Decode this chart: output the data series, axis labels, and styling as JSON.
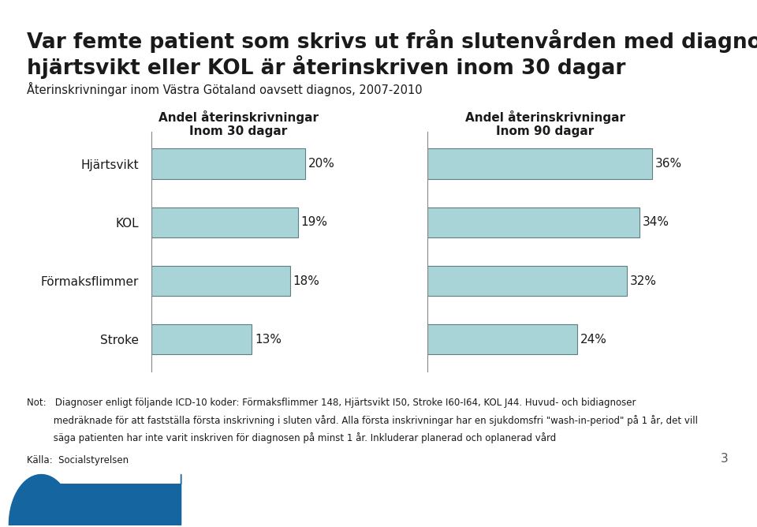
{
  "title_line1": "Var femte patient som skrivs ut från slutenvården med diagnosen",
  "title_line2": "hjärtsvikt eller KOL är återinskriven inom 30 dagar",
  "subtitle": "Återinskrivningar inom Västra Götaland oavsett diagnos, 2007-2010",
  "categories": [
    "Hjärtsvikt",
    "KOL",
    "Förmaksflimmer",
    "Stroke"
  ],
  "values_30": [
    20,
    19,
    18,
    13
  ],
  "values_90": [
    36,
    34,
    32,
    24
  ],
  "labels_30": [
    "20%",
    "19%",
    "18%",
    "13%"
  ],
  "labels_90": [
    "36%",
    "34%",
    "32%",
    "24%"
  ],
  "header_30_line1": "Andel återinskrivningar",
  "header_30_line2": "Inom 30 dagar",
  "header_90_line1": "Andel återinskrivningar",
  "header_90_line2": "Inom 90 dagar",
  "bar_color": "#a8d4d8",
  "bar_edge_color": "#607d80",
  "background_color": "#ffffff",
  "note_line1": "Not:   Diagnoser enligt följande ICD-10 koder: Förmaksflimmer 148, Hjärtsvikt I50, Stroke I60-I64, KOL J44. Huvud- och bidiagnoser",
  "note_line2": "         medräknade för att fastställa första inskrivning i sluten vård. Alla första inskrivningar har en sjukdomsfri \"wash-in-period\" på 1 år, det vill",
  "note_line3": "         säga patienten har inte varit inskriven för diagnosen på minst 1 år. Inkluderar planerad och oplanerad vård",
  "source_text": "Källa:  Socialstyrelsen",
  "footer_bg_color": "#1565a0",
  "footer_dark_color": "#0d3f6e",
  "page_number": "3",
  "title_fontsize": 19,
  "subtitle_fontsize": 10.5,
  "category_fontsize": 11,
  "value_fontsize": 11,
  "header_fontsize": 11,
  "note_fontsize": 8.5
}
